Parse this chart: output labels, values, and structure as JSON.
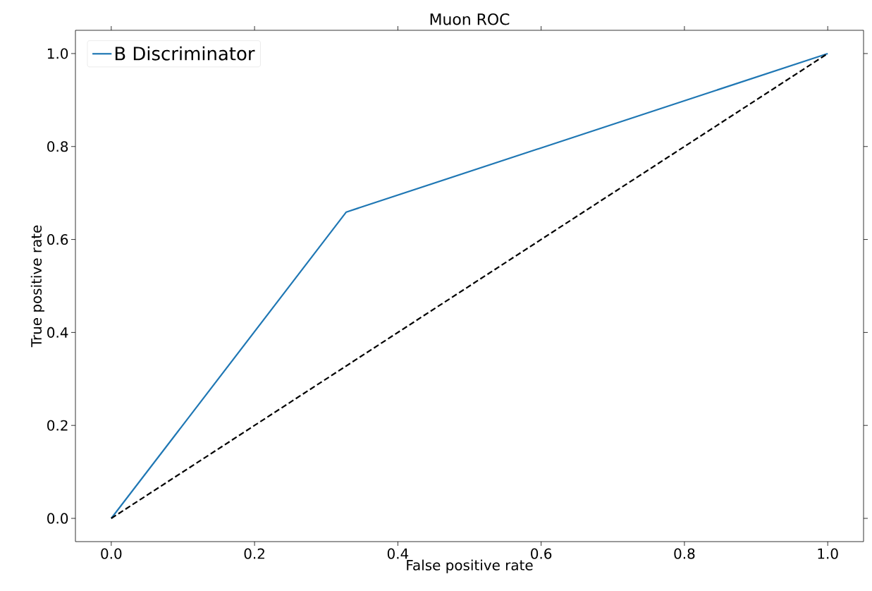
{
  "chart_data": {
    "type": "line",
    "title": "Muon ROC",
    "xlabel": "False positive rate",
    "ylabel": "True positive rate",
    "xlim": [
      -0.05,
      1.05
    ],
    "ylim": [
      -0.05,
      1.05
    ],
    "xticks": [
      {
        "value": 0,
        "label": "0.0"
      },
      {
        "value": 0.2,
        "label": "0.2"
      },
      {
        "value": 0.4,
        "label": "0.4"
      },
      {
        "value": 0.6,
        "label": "0.6"
      },
      {
        "value": 0.8,
        "label": "0.8"
      },
      {
        "value": 1,
        "label": "1.0"
      }
    ],
    "yticks": [
      {
        "value": 0,
        "label": "0.0"
      },
      {
        "value": 0.2,
        "label": "0.2"
      },
      {
        "value": 0.4,
        "label": "0.4"
      },
      {
        "value": 0.6,
        "label": "0.6"
      },
      {
        "value": 0.8,
        "label": "0.8"
      },
      {
        "value": 1,
        "label": "1.0"
      }
    ],
    "series": [
      {
        "name": "B Discriminator",
        "color": "#1f77b4",
        "x": [
          0,
          0.328,
          1
        ],
        "values": [
          0,
          0.659,
          1
        ]
      },
      {
        "color": "#000000",
        "line_style": "dashed",
        "x": [
          0,
          1
        ],
        "values": [
          0,
          1
        ]
      }
    ],
    "legend": "top left",
    "grid": false,
    "marker": "none"
  }
}
